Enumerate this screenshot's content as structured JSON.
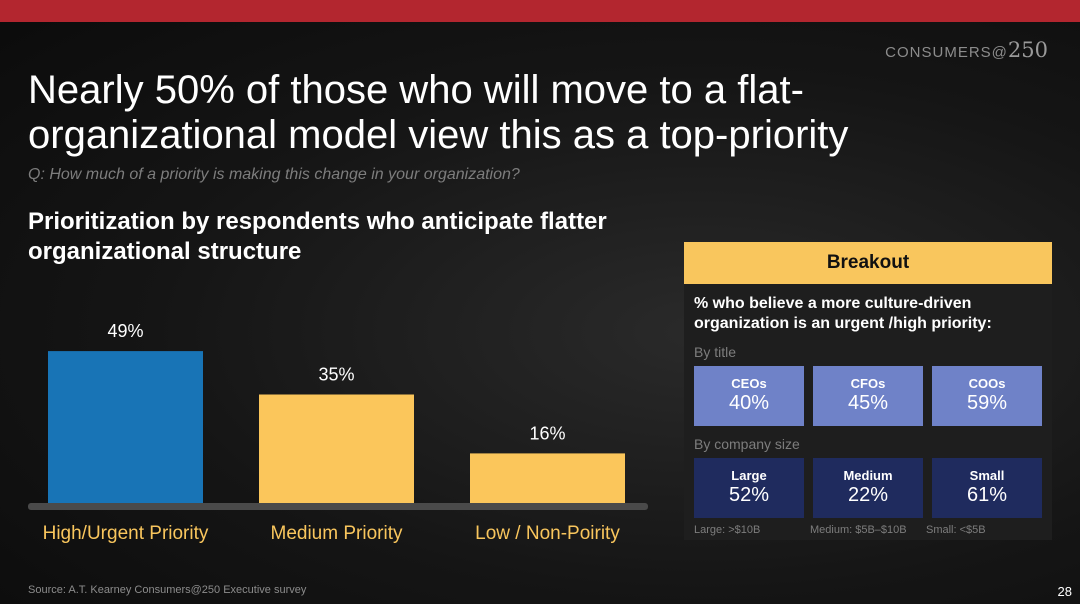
{
  "header": {
    "brand_text": "CONSUMERS@",
    "brand_num": "250",
    "title": "Nearly 50% of those who will move to a flat-organizational model view this as a top-priority",
    "question": "Q: How much of a priority is making this change in your organization?",
    "subtitle": "Prioritization by respondents who anticipate flatter organizational structure"
  },
  "chart_data": {
    "type": "bar",
    "categories": [
      "High/Urgent Priority",
      "Medium Priority",
      "Low / Non-Poirity"
    ],
    "values": [
      49,
      35,
      16
    ],
    "value_labels": [
      "49%",
      "35%",
      "16%"
    ],
    "colors": [
      "#1874b6",
      "#fbc65b",
      "#fbc65b"
    ],
    "title": "",
    "xlabel": "",
    "ylabel": "",
    "ylim": [
      0,
      50
    ],
    "grid": false
  },
  "breakout": {
    "header": "Breakout",
    "question": "% who believe a more culture-driven organization  is an urgent /high priority:",
    "by_title_label": "By title",
    "by_title": [
      {
        "label": "CEOs",
        "value": "40%"
      },
      {
        "label": "CFOs",
        "value": "45%"
      },
      {
        "label": "COOs",
        "value": "59%"
      }
    ],
    "by_size_label": "By company size",
    "by_size": [
      {
        "label": "Large",
        "value": "52%"
      },
      {
        "label": "Medium",
        "value": "22%"
      },
      {
        "label": "Small",
        "value": "61%"
      }
    ],
    "footnotes": [
      "Large: >$10B",
      "Medium: $5B–$10B",
      "Small: <$5B"
    ],
    "colors": {
      "header": "#f9c65d",
      "title_tile": "#6f82c8",
      "size_tile": "#1f2b5e"
    }
  },
  "footer": {
    "source": "Source: A.T. Kearney Consumers@250 Executive survey",
    "page": "28"
  }
}
